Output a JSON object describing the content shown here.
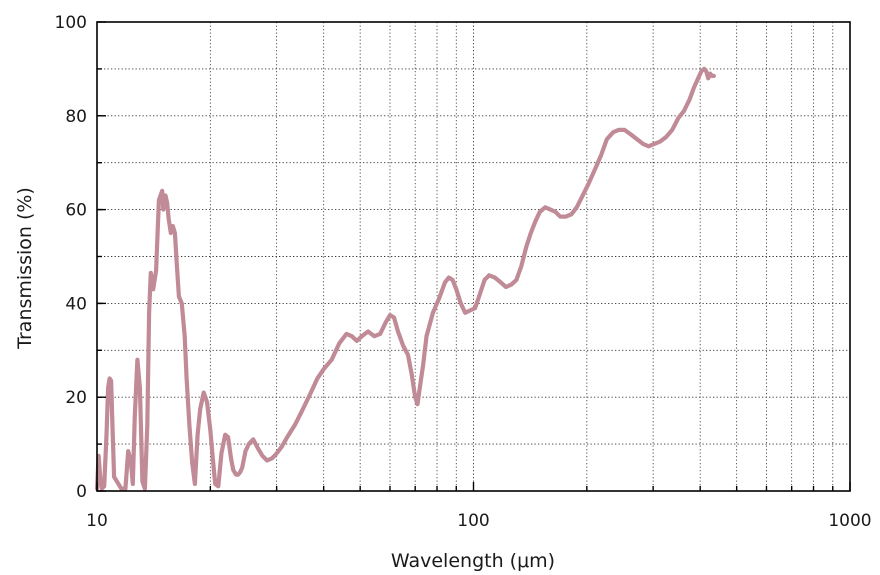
{
  "chart_data": {
    "type": "line",
    "title": "",
    "xlabel": "Wavelength (μm)",
    "ylabel": "Transmission (%)",
    "x_scale": "log",
    "xlim": [
      10,
      1000
    ],
    "ylim": [
      0,
      100
    ],
    "x_ticks": [
      10,
      100,
      1000
    ],
    "x_tick_labels": [
      "10",
      "100",
      "1000"
    ],
    "y_ticks": [
      0,
      20,
      40,
      60,
      80,
      100
    ],
    "y_tick_labels": [
      "0",
      "20",
      "40",
      "60",
      "80",
      "100"
    ],
    "grid": true,
    "legend": "none",
    "colors": {
      "series": "#c08b96",
      "frame": "#000000",
      "grid": "#333333"
    },
    "series": [
      {
        "x": [
          10.0,
          10.1,
          10.2,
          10.3,
          10.45,
          10.6,
          10.7,
          10.8,
          10.9,
          11.0,
          11.1,
          11.3,
          11.6,
          11.9,
          12.1,
          12.3,
          12.45,
          12.6,
          12.8,
          13.0,
          13.2,
          13.4,
          13.6,
          13.75,
          13.9,
          14.1,
          14.35,
          14.6,
          14.9,
          15.0,
          15.2,
          15.35,
          15.5,
          15.7,
          15.9,
          16.1,
          16.3,
          16.5,
          16.8,
          17.1,
          17.3,
          17.6,
          17.9,
          18.2,
          18.5,
          18.8,
          19.2,
          19.6,
          20.0,
          20.3,
          20.6,
          21.0,
          21.4,
          21.9,
          22.3,
          22.7,
          23.0,
          23.4,
          23.7,
          24.0,
          24.3,
          24.8,
          25.3,
          26.0,
          26.8,
          27.5,
          28.3,
          29.2,
          30.0,
          31.0,
          32.0,
          33.5,
          35.0,
          37.0,
          38.5,
          40.0,
          42.0,
          44.0,
          46.0,
          47.5,
          49.0,
          50.5,
          52.5,
          54.5,
          56.5,
          58.5,
          60.0,
          61.5,
          63.0,
          65.0,
          67.0,
          68.5,
          70.0,
          71.0,
          72.0,
          73.5,
          75.0,
          78.0,
          81.0,
          84.0,
          86.0,
          88.0,
          90.0,
          92.5,
          95.0,
          98.0,
          101.0,
          104.0,
          107.0,
          110.0,
          114.0,
          118.0,
          122.0,
          126.0,
          130.0,
          134.0,
          138.0,
          142.0,
          146.0,
          150.0,
          155.0,
          160.0,
          165.0,
          170.0,
          176.0,
          182.0,
          188.0,
          195.0,
          202.0,
          210.0,
          218.0,
          226.0,
          235.0,
          243.0,
          252.0,
          262.0,
          272.0,
          282.0,
          292.0,
          302.0,
          313.0,
          325.0,
          337.0,
          350.0,
          362.0,
          375.0,
          385.0,
          395.0,
          403.0,
          410.0,
          415.0,
          420.0,
          425.0,
          430.0,
          435.0
        ],
        "y": [
          0.5,
          7.5,
          3.0,
          0.5,
          1.0,
          12.0,
          22.0,
          24.0,
          23.5,
          13.0,
          3.0,
          2.0,
          0.5,
          0.5,
          8.5,
          6.5,
          1.5,
          16.0,
          28.0,
          22.0,
          2.0,
          0.5,
          14.0,
          38.0,
          46.5,
          43.0,
          47.0,
          62.0,
          64.0,
          60.0,
          63.0,
          61.5,
          58.0,
          55.0,
          56.5,
          55.0,
          48.0,
          41.5,
          40.0,
          33.0,
          24.0,
          14.0,
          6.0,
          1.5,
          12.0,
          17.5,
          21.0,
          19.0,
          13.0,
          7.0,
          1.5,
          1.0,
          8.0,
          12.0,
          11.5,
          7.0,
          4.5,
          3.5,
          3.5,
          4.0,
          5.0,
          8.5,
          10.0,
          11.0,
          9.0,
          7.5,
          6.5,
          7.0,
          8.0,
          9.5,
          11.5,
          14.0,
          17.0,
          21.0,
          24.0,
          26.0,
          28.0,
          31.5,
          33.5,
          33.0,
          32.0,
          33.0,
          34.0,
          33.0,
          33.5,
          36.0,
          37.5,
          37.0,
          34.0,
          31.0,
          29.0,
          25.0,
          20.0,
          18.5,
          22.0,
          27.0,
          33.0,
          38.0,
          41.0,
          44.5,
          45.5,
          45.0,
          43.0,
          40.0,
          38.0,
          38.5,
          39.0,
          42.0,
          45.0,
          46.0,
          45.5,
          44.5,
          43.5,
          44.0,
          45.0,
          48.0,
          52.0,
          55.0,
          57.5,
          59.5,
          60.5,
          60.0,
          59.5,
          58.5,
          58.5,
          59.0,
          60.5,
          63.0,
          65.5,
          68.5,
          71.5,
          75.0,
          76.5,
          77.0,
          77.0,
          76.0,
          75.0,
          74.0,
          73.5,
          74.0,
          74.5,
          75.5,
          77.0,
          79.5,
          81.0,
          83.5,
          86.0,
          88.0,
          89.5,
          90.0,
          89.5,
          88.0,
          89.0,
          88.5,
          88.5
        ]
      }
    ]
  }
}
